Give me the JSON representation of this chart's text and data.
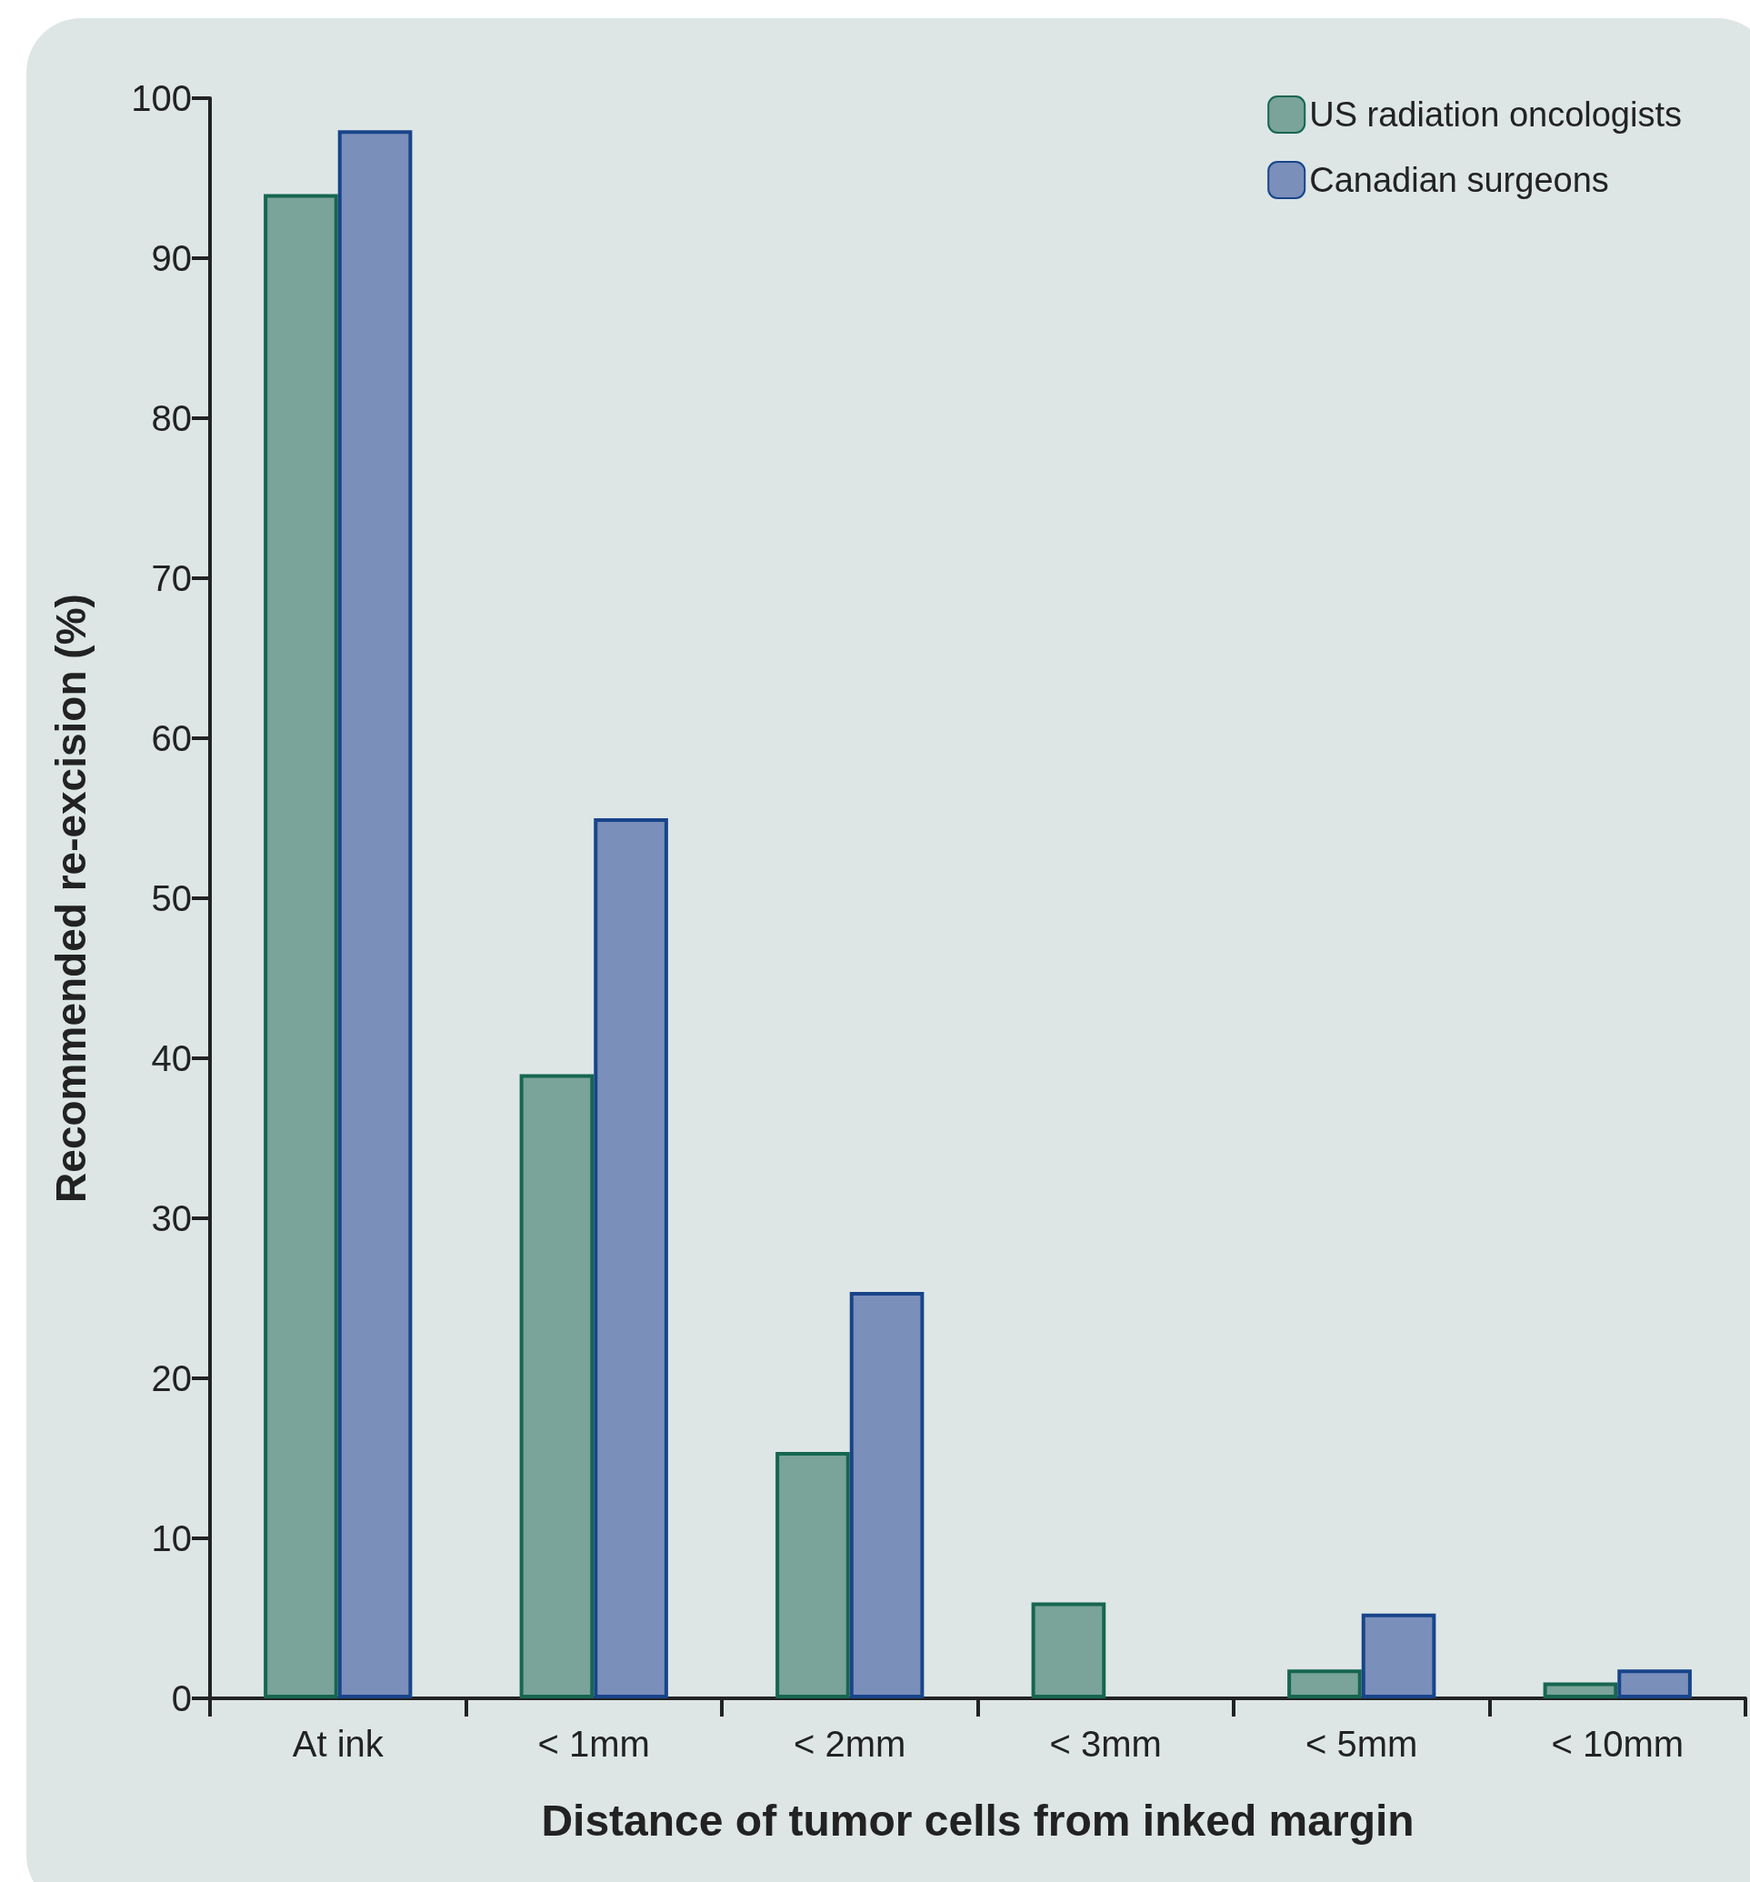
{
  "chart_data": {
    "type": "bar",
    "xlabel": "Distance of tumor cells from inked margin",
    "ylabel": "Recommended re-excision (%)",
    "categories": [
      "At ink",
      "< 1mm",
      "< 2mm",
      "< 3mm",
      "< 5mm",
      "< 10mm"
    ],
    "series": [
      {
        "name": "US radiation oncologists",
        "color": "#7aa399",
        "values": [
          94,
          39,
          15.4,
          6,
          1.8,
          1
        ]
      },
      {
        "name": "Canadian surgeons",
        "color": "#7b8fbb",
        "values": [
          98,
          55,
          25.4,
          null,
          5.3,
          1.8
        ]
      }
    ],
    "ylim": [
      0,
      100
    ],
    "yticks": [
      0,
      10,
      20,
      30,
      40,
      50,
      60,
      70,
      80,
      90,
      100
    ],
    "grid": false,
    "legend": "top right"
  }
}
